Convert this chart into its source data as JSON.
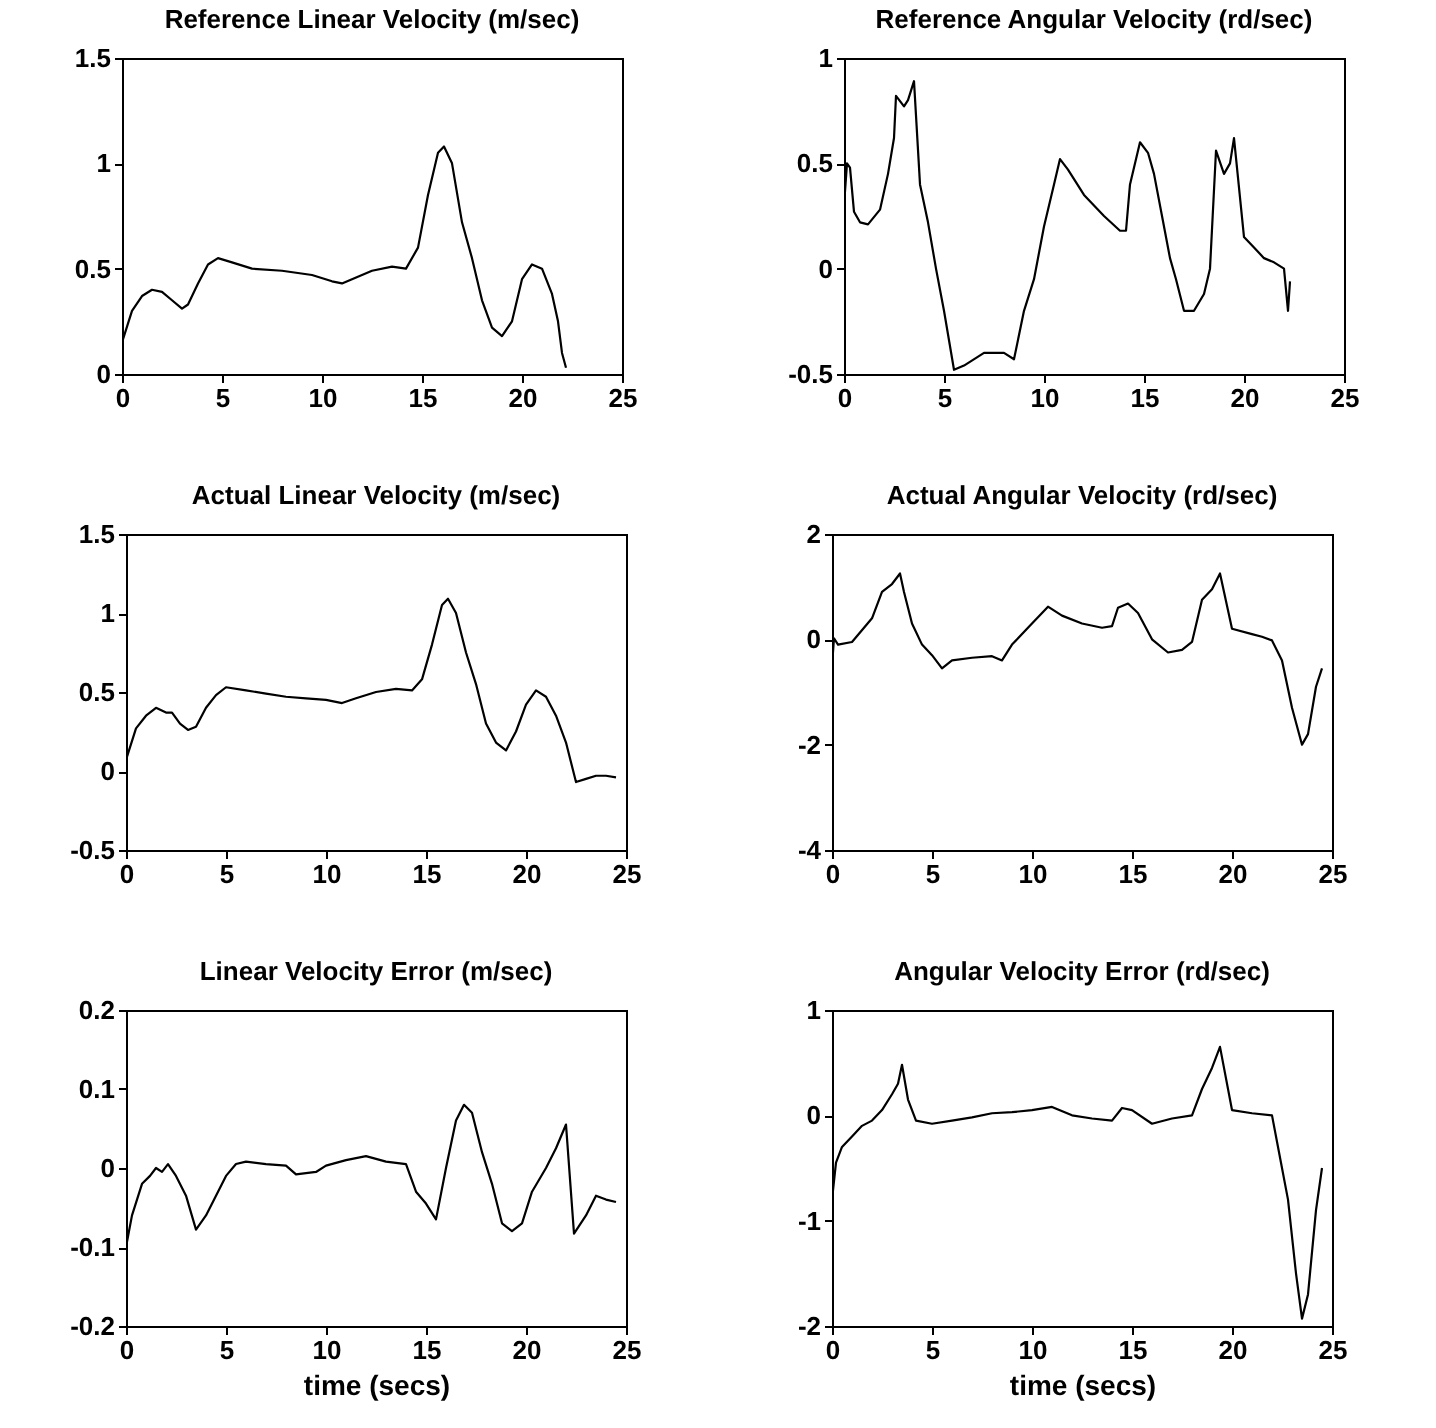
{
  "chart_data": [
    {
      "type": "line",
      "title": "Reference Linear Velocity (m/sec)",
      "xlim": [
        0,
        25
      ],
      "xticks": [
        0,
        5,
        10,
        15,
        20,
        25
      ],
      "ylim": [
        0,
        1.5
      ],
      "yticks": [
        0,
        0.5,
        1,
        1.5
      ],
      "grid": false,
      "x": [
        0,
        0.5,
        1,
        1.5,
        2,
        2.5,
        3,
        3.3,
        3.8,
        4.3,
        4.8,
        5.5,
        6.5,
        8,
        9.5,
        10.5,
        11,
        11.5,
        12.5,
        13.5,
        14.2,
        14.8,
        15.3,
        15.8,
        16.1,
        16.5,
        17,
        17.5,
        18,
        18.5,
        19,
        19.5,
        20,
        20.5,
        21,
        21.5,
        21.8,
        22,
        22.2
      ],
      "series": [
        {
          "color": "#000000",
          "values": [
            0.15,
            0.3,
            0.37,
            0.4,
            0.39,
            0.35,
            0.31,
            0.33,
            0.43,
            0.52,
            0.55,
            0.53,
            0.5,
            0.49,
            0.47,
            0.44,
            0.43,
            0.45,
            0.49,
            0.51,
            0.5,
            0.6,
            0.85,
            1.05,
            1.08,
            1.0,
            0.72,
            0.55,
            0.35,
            0.22,
            0.18,
            0.25,
            0.45,
            0.52,
            0.5,
            0.38,
            0.25,
            0.1,
            0.03
          ]
        }
      ]
    },
    {
      "type": "line",
      "title": "Reference Angular Velocity (rd/sec)",
      "xlim": [
        0,
        25
      ],
      "xticks": [
        0,
        5,
        10,
        15,
        20,
        25
      ],
      "ylim": [
        -0.5,
        1
      ],
      "yticks": [
        -0.5,
        0,
        0.5,
        1
      ],
      "grid": false,
      "x": [
        0,
        0.15,
        0.3,
        0.5,
        0.8,
        1.2,
        1.8,
        2.2,
        2.5,
        2.6,
        3.0,
        3.2,
        3.5,
        3.8,
        4.2,
        4.6,
        5.0,
        5.5,
        6,
        7,
        8,
        8.5,
        9,
        9.5,
        10,
        10.5,
        10.8,
        11.2,
        12,
        13,
        13.8,
        14.1,
        14.3,
        14.8,
        15.2,
        15.5,
        16,
        16.3,
        16.6,
        17,
        17.5,
        18,
        18.3,
        18.6,
        19,
        19.3,
        19.5,
        20,
        20.5,
        21,
        21.5,
        22,
        22.2,
        22.3
      ],
      "series": [
        {
          "color": "#000000",
          "values": [
            0.3,
            0.5,
            0.48,
            0.27,
            0.22,
            0.21,
            0.28,
            0.45,
            0.62,
            0.82,
            0.77,
            0.8,
            0.89,
            0.4,
            0.22,
            0.0,
            -0.2,
            -0.48,
            -0.46,
            -0.4,
            -0.4,
            -0.43,
            -0.2,
            -0.05,
            0.2,
            0.4,
            0.52,
            0.47,
            0.35,
            0.25,
            0.18,
            0.18,
            0.4,
            0.6,
            0.55,
            0.45,
            0.2,
            0.05,
            -0.05,
            -0.2,
            -0.2,
            -0.12,
            0,
            0.56,
            0.45,
            0.5,
            0.62,
            0.15,
            0.1,
            0.05,
            0.03,
            0.0,
            -0.2,
            -0.06
          ]
        }
      ]
    },
    {
      "type": "line",
      "title": "Actual Linear Velocity (m/sec)",
      "xlim": [
        0,
        25
      ],
      "xticks": [
        0,
        5,
        10,
        15,
        20,
        25
      ],
      "ylim": [
        -0.5,
        1.5
      ],
      "yticks": [
        -0.5,
        0,
        0.5,
        1,
        1.5
      ],
      "grid": false,
      "x": [
        0,
        0.5,
        1,
        1.5,
        2,
        2.3,
        2.7,
        3.1,
        3.5,
        4,
        4.5,
        5,
        6,
        7,
        8,
        9,
        10,
        10.8,
        11.5,
        12.5,
        13.5,
        14.3,
        14.8,
        15.3,
        15.8,
        16.1,
        16.5,
        17,
        17.5,
        18,
        18.5,
        19,
        19.5,
        20,
        20.5,
        21,
        21.5,
        22,
        22.5,
        23,
        23.5,
        24,
        24.5
      ],
      "series": [
        {
          "color": "#000000",
          "values": [
            0.07,
            0.27,
            0.35,
            0.4,
            0.37,
            0.37,
            0.3,
            0.26,
            0.28,
            0.4,
            0.48,
            0.53,
            0.51,
            0.49,
            0.47,
            0.46,
            0.45,
            0.43,
            0.46,
            0.5,
            0.52,
            0.51,
            0.58,
            0.8,
            1.05,
            1.09,
            1.0,
            0.75,
            0.55,
            0.3,
            0.18,
            0.13,
            0.25,
            0.42,
            0.51,
            0.47,
            0.35,
            0.18,
            -0.07,
            -0.05,
            -0.03,
            -0.03,
            -0.04
          ]
        }
      ]
    },
    {
      "type": "line",
      "title": "Actual Angular Velocity (rd/sec)",
      "xlim": [
        0,
        25
      ],
      "xticks": [
        0,
        5,
        10,
        15,
        20,
        25
      ],
      "ylim": [
        -4,
        2
      ],
      "yticks": [
        -4,
        -2,
        0,
        2
      ],
      "grid": false,
      "x": [
        0,
        0.1,
        0.3,
        1,
        2,
        2.5,
        3.0,
        3.4,
        3.6,
        4,
        4.5,
        5,
        5.5,
        6,
        7,
        8,
        8.5,
        9,
        10,
        10.8,
        11.5,
        12.5,
        13.5,
        14,
        14.3,
        14.8,
        15.3,
        16,
        16.8,
        17.5,
        18,
        18.5,
        19,
        19.4,
        20,
        21,
        21.5,
        22,
        22.5,
        23,
        23.5,
        23.8,
        24.2,
        24.5
      ],
      "series": [
        {
          "color": "#000000",
          "values": [
            -0.5,
            0.02,
            -0.1,
            -0.05,
            0.4,
            0.9,
            1.05,
            1.25,
            0.9,
            0.3,
            -0.1,
            -0.3,
            -0.55,
            -0.4,
            -0.35,
            -0.32,
            -0.4,
            -0.1,
            0.3,
            0.62,
            0.45,
            0.3,
            0.22,
            0.25,
            0.6,
            0.68,
            0.5,
            0.0,
            -0.25,
            -0.2,
            -0.05,
            0.75,
            0.95,
            1.25,
            0.2,
            0.1,
            0.05,
            -0.02,
            -0.4,
            -1.3,
            -2.0,
            -1.8,
            -0.9,
            -0.55
          ]
        }
      ]
    },
    {
      "type": "line",
      "title": "Linear Velocity Error (m/sec)",
      "xlabel": "time (secs)",
      "xlim": [
        0,
        25
      ],
      "xticks": [
        0,
        5,
        10,
        15,
        20,
        25
      ],
      "ylim": [
        -0.2,
        0.2
      ],
      "yticks": [
        -0.2,
        -0.1,
        0,
        0.1,
        0.2
      ],
      "grid": false,
      "x": [
        0,
        0.3,
        0.8,
        1.2,
        1.5,
        1.8,
        2.1,
        2.5,
        3,
        3.5,
        4,
        4.5,
        5,
        5.5,
        6,
        7,
        8,
        8.5,
        9.5,
        10,
        11,
        12,
        13,
        14,
        14.5,
        15,
        15.5,
        16,
        16.5,
        16.9,
        17.3,
        17.8,
        18.3,
        18.8,
        19.3,
        19.8,
        20.3,
        21,
        21.5,
        22,
        22.4,
        23,
        23.5,
        24,
        24.5
      ],
      "series": [
        {
          "color": "#000000",
          "values": [
            -0.1,
            -0.06,
            -0.02,
            -0.01,
            0.0,
            -0.005,
            0.005,
            -0.01,
            -0.035,
            -0.078,
            -0.06,
            -0.035,
            -0.01,
            0.005,
            0.008,
            0.005,
            0.003,
            -0.008,
            -0.005,
            0.003,
            0.01,
            0.015,
            0.008,
            0.005,
            -0.03,
            -0.045,
            -0.065,
            0.0,
            0.06,
            0.08,
            0.07,
            0.02,
            -0.02,
            -0.07,
            -0.08,
            -0.07,
            -0.03,
            0.0,
            0.025,
            0.055,
            -0.083,
            -0.06,
            -0.035,
            -0.04,
            -0.043
          ]
        }
      ]
    },
    {
      "type": "line",
      "title": "Angular Velocity Error (rd/sec)",
      "xlabel": "time (secs)",
      "xlim": [
        0,
        25
      ],
      "xticks": [
        0,
        5,
        10,
        15,
        20,
        25
      ],
      "ylim": [
        -2,
        1
      ],
      "yticks": [
        -2,
        -1,
        0,
        1
      ],
      "grid": false,
      "x": [
        0,
        0.2,
        0.5,
        1,
        1.5,
        2,
        2.5,
        3,
        3.3,
        3.5,
        3.8,
        4.2,
        5,
        6,
        7,
        8,
        9,
        10,
        11,
        12,
        13,
        14,
        14.5,
        15,
        16,
        17,
        18,
        18.5,
        19,
        19.4,
        20,
        21,
        22,
        22.3,
        22.8,
        23.2,
        23.5,
        23.8,
        24.2,
        24.5
      ],
      "series": [
        {
          "color": "#000000",
          "values": [
            -0.8,
            -0.45,
            -0.3,
            -0.2,
            -0.1,
            -0.05,
            0.05,
            0.2,
            0.3,
            0.48,
            0.15,
            -0.05,
            -0.08,
            -0.05,
            -0.02,
            0.02,
            0.03,
            0.05,
            0.08,
            0.0,
            -0.03,
            -0.05,
            0.07,
            0.05,
            -0.08,
            -0.03,
            0.0,
            0.25,
            0.45,
            0.65,
            0.05,
            0.02,
            0.0,
            -0.3,
            -0.8,
            -1.5,
            -1.93,
            -1.7,
            -0.9,
            -0.5
          ]
        }
      ]
    }
  ]
}
